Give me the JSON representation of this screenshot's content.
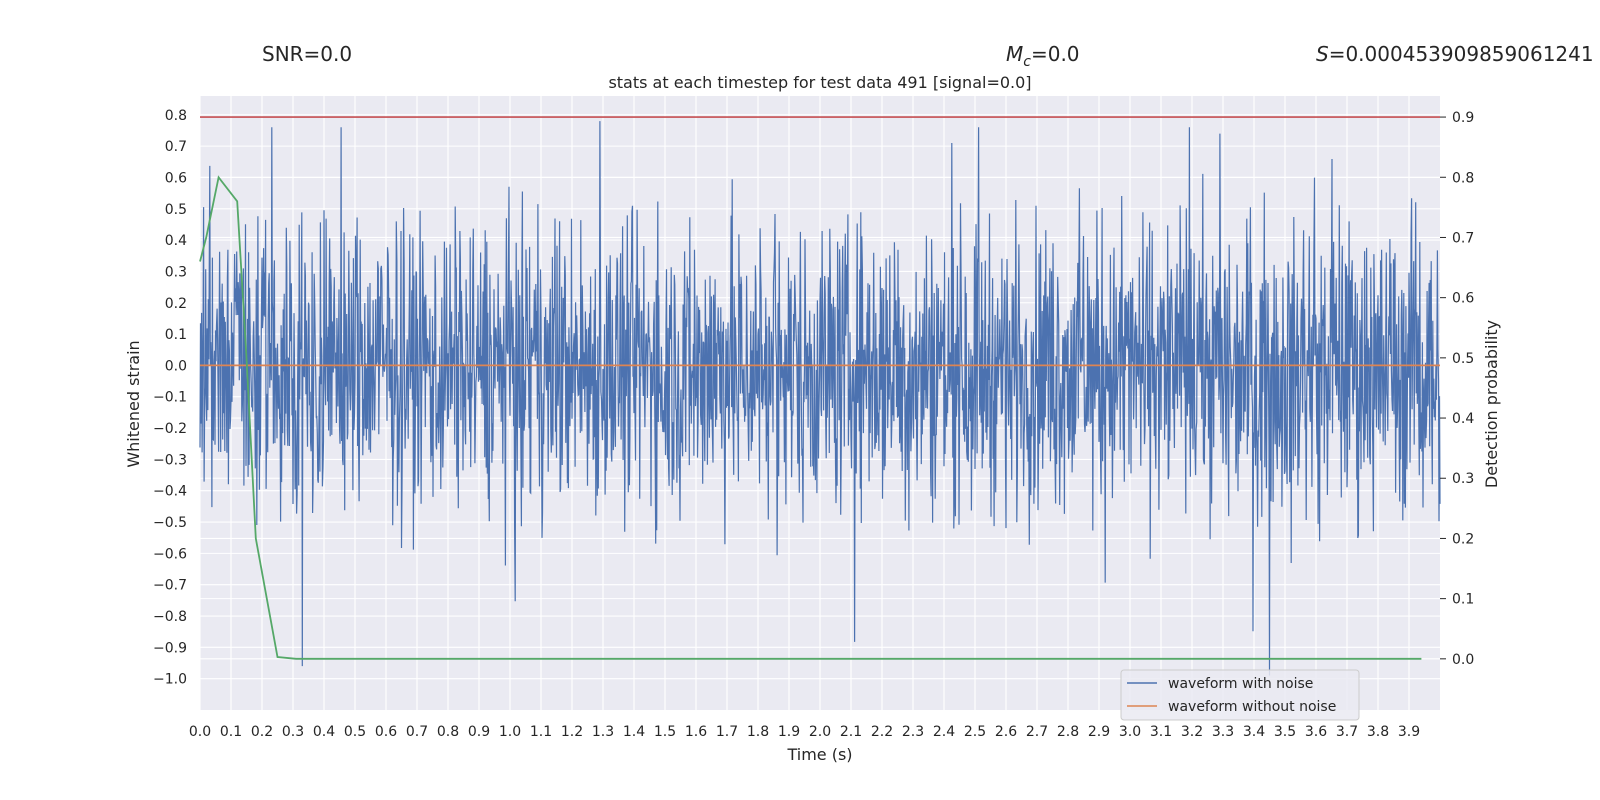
{
  "stats": {
    "snr_text": "SNR=0.0",
    "mc_symbol": "M",
    "mc_subscript": "c",
    "mc_value": "=0.0",
    "s_symbol": "S",
    "s_value": "=0.000453909859061241"
  },
  "chart_data": {
    "type": "line",
    "title": "stats at each timestep for test data 491 [signal=0.0]",
    "xlabel": "Time (s)",
    "ylabel_left": "Whitened strain",
    "ylabel_right": "Detection probability",
    "xlim": [
      0.0,
      4.0
    ],
    "ylim_left": [
      -1.1,
      0.86
    ],
    "ylim_right": [
      -0.085,
      0.935
    ],
    "x_ticks": [
      "0.0",
      "0.1",
      "0.2",
      "0.3",
      "0.4",
      "0.5",
      "0.6",
      "0.7",
      "0.8",
      "0.9",
      "1.0",
      "1.1",
      "1.2",
      "1.3",
      "1.4",
      "1.5",
      "1.6",
      "1.7",
      "1.8",
      "1.9",
      "2.0",
      "2.1",
      "2.2",
      "2.3",
      "2.4",
      "2.5",
      "2.6",
      "2.7",
      "2.8",
      "2.9",
      "3.0",
      "3.1",
      "3.2",
      "3.3",
      "3.4",
      "3.5",
      "3.6",
      "3.7",
      "3.8",
      "3.9"
    ],
    "y_ticks_left": [
      "0.8",
      "0.7",
      "0.6",
      "0.5",
      "0.4",
      "0.3",
      "0.2",
      "0.1",
      "0.0",
      "−0.1",
      "−0.2",
      "−0.3",
      "−0.4",
      "−0.5",
      "−0.6",
      "−0.7",
      "−0.8",
      "−0.9",
      "−1.0"
    ],
    "y_ticks_right": [
      "0.9",
      "0.8",
      "0.7",
      "0.6",
      "0.5",
      "0.4",
      "0.3",
      "0.2",
      "0.1",
      "0.0"
    ],
    "grid": true,
    "legend_position": "lower-right",
    "threshold": {
      "axis": "right",
      "value": 0.9,
      "color": "#c44e52"
    },
    "series": [
      {
        "name": "waveform with noise",
        "axis": "left",
        "color": "#4c72b0",
        "style": "noise",
        "amplitude_typical": 0.28,
        "min_value": -0.99,
        "max_value": 0.78
      },
      {
        "name": "waveform without noise",
        "axis": "left",
        "color": "#dd8452",
        "x": [
          0.0,
          4.0
        ],
        "y": [
          0.0,
          0.0
        ]
      },
      {
        "axis": "right",
        "color": "#55a868",
        "x": [
          0.0,
          0.02,
          0.06,
          0.12,
          0.15,
          0.18,
          0.25,
          0.31,
          0.5,
          1.0,
          2.0,
          3.0,
          3.94
        ],
        "y": [
          0.66,
          0.7,
          0.8,
          0.76,
          0.5,
          0.2,
          0.003,
          0.0,
          0.0,
          0.0,
          0.0,
          0.0,
          0.0
        ]
      }
    ]
  }
}
